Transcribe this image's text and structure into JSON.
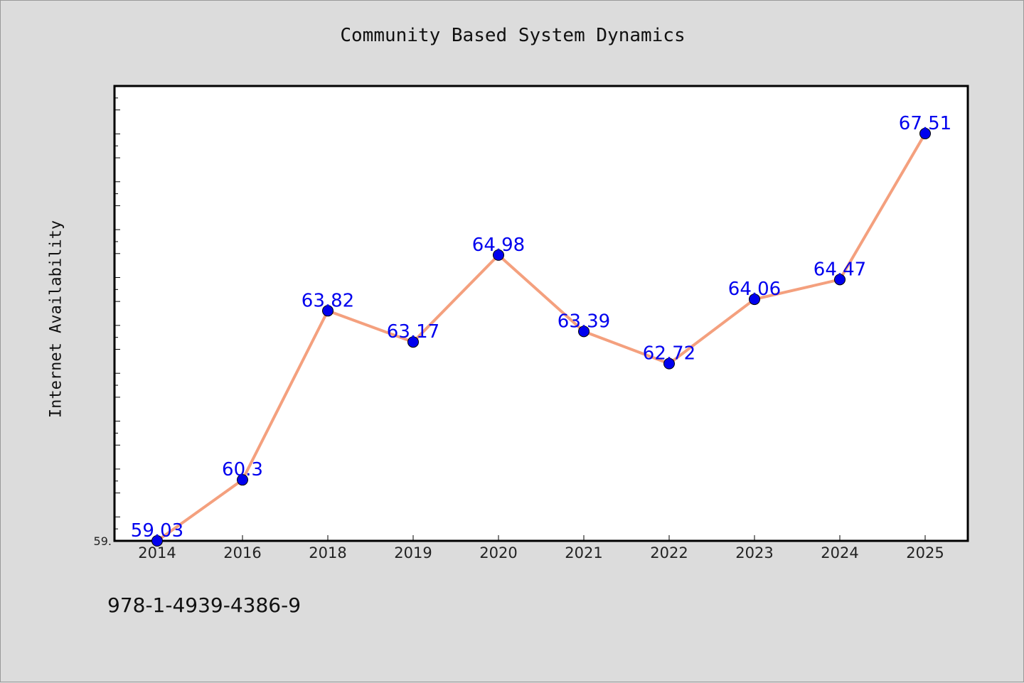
{
  "title": "Community Based System Dynamics",
  "footer_text": "978-1-4939-4386-9",
  "chart_data": {
    "type": "line",
    "title": "Community Based System Dynamics",
    "xlabel": "",
    "ylabel": "Internet Availability",
    "categories": [
      "2014",
      "2016",
      "2018",
      "2019",
      "2020",
      "2021",
      "2022",
      "2023",
      "2024",
      "2025"
    ],
    "series": [
      {
        "values": [
          59.03,
          60.3,
          63.82,
          63.17,
          64.98,
          63.39,
          62.72,
          64.06,
          64.47,
          67.51
        ],
        "line_color": "#f4a07e",
        "marker_color": "#0000ee",
        "label_color": "#0000ee"
      }
    ],
    "data_labels": [
      "59.03",
      "60.3",
      "63.82",
      "63.17",
      "64.98",
      "63.39",
      "62.72",
      "64.06",
      "64.47",
      "67.51"
    ],
    "ylim": [
      59.03,
      68.5
    ],
    "y_tick_labels": [
      "59."
    ],
    "grid": false,
    "legend": "none"
  }
}
